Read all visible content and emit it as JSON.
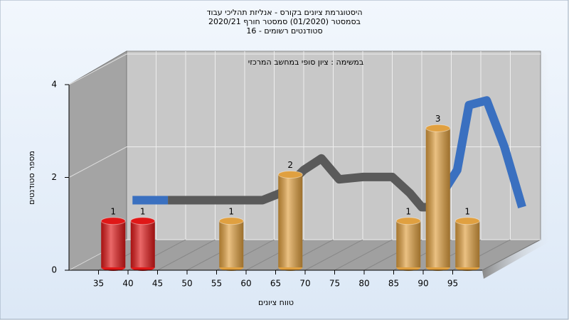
{
  "chart_data": {
    "type": "bar",
    "title": [
      "היסטוגרמת ציונים בקורס - אנליזת תהליכי עבוד",
      "בסמסטר  (01/2020)  סמסטר חורף 2020/21",
      "סטודנטים רשומים - 16"
    ],
    "annotation": "במשימה : ציון סופי במחשב המרכזי",
    "x_label": "טווח ציונים",
    "y_label": "מספר סטודנטים",
    "x": [
      37.5,
      42.5,
      57.5,
      67.5,
      87.5,
      92.5,
      97.5
    ],
    "values": [
      1,
      1,
      1,
      2,
      1,
      3,
      1
    ],
    "colors": [
      "#e01818",
      "#e01818",
      "#e0a040",
      "#e0a040",
      "#e0a040",
      "#e0a040",
      "#e0a040"
    ],
    "xlim": [
      30,
      100
    ],
    "xticks": [
      35,
      40,
      45,
      50,
      55,
      60,
      65,
      70,
      75,
      80,
      85,
      90,
      95
    ],
    "ylim": [
      0,
      4
    ],
    "yticks": [
      0,
      2,
      4
    ],
    "grid": true,
    "curve": [
      {
        "color": "#3a70c0",
        "x": [
          31,
          37
        ],
        "values": [
          0.85,
          0.85
        ]
      },
      {
        "color": "#5a5a5a",
        "x": [
          37,
          45,
          50,
          53,
          56,
          60,
          63,
          66,
          70,
          75,
          78,
          80,
          82
        ],
        "values": [
          0.85,
          0.85,
          0.85,
          0.85,
          1.0,
          1.5,
          1.75,
          1.3,
          1.35,
          1.35,
          1.0,
          0.7,
          0.7
        ]
      },
      {
        "color": "#3a70c0",
        "x": [
          82,
          86,
          88,
          91,
          94,
          97
        ],
        "values": [
          0.7,
          1.5,
          2.9,
          3.0,
          2.0,
          0.7
        ]
      }
    ]
  }
}
